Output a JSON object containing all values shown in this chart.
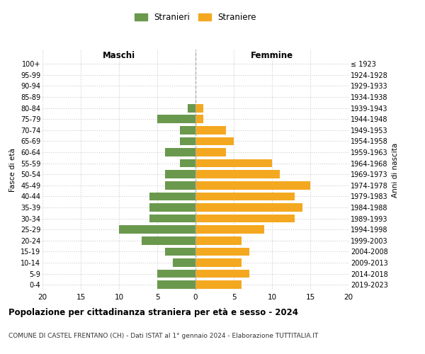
{
  "age_groups": [
    "0-4",
    "5-9",
    "10-14",
    "15-19",
    "20-24",
    "25-29",
    "30-34",
    "35-39",
    "40-44",
    "45-49",
    "50-54",
    "55-59",
    "60-64",
    "65-69",
    "70-74",
    "75-79",
    "80-84",
    "85-89",
    "90-94",
    "95-99",
    "100+"
  ],
  "birth_years": [
    "2019-2023",
    "2014-2018",
    "2009-2013",
    "2004-2008",
    "1999-2003",
    "1994-1998",
    "1989-1993",
    "1984-1988",
    "1979-1983",
    "1974-1978",
    "1969-1973",
    "1964-1968",
    "1959-1963",
    "1954-1958",
    "1949-1953",
    "1944-1948",
    "1939-1943",
    "1934-1938",
    "1929-1933",
    "1924-1928",
    "≤ 1923"
  ],
  "males": [
    5,
    5,
    3,
    4,
    7,
    10,
    6,
    6,
    6,
    4,
    4,
    2,
    4,
    2,
    2,
    5,
    1,
    0,
    0,
    0,
    0
  ],
  "females": [
    6,
    7,
    6,
    7,
    6,
    9,
    13,
    14,
    13,
    15,
    11,
    10,
    4,
    5,
    4,
    1,
    1,
    0,
    0,
    0,
    0
  ],
  "male_color": "#6a994e",
  "female_color": "#f4a820",
  "grid_color": "#cccccc",
  "title": "Popolazione per cittadinanza straniera per età e sesso - 2024",
  "subtitle": "COMUNE DI CASTEL FRENTANO (CH) - Dati ISTAT al 1° gennaio 2024 - Elaborazione TUTTITALIA.IT",
  "xlabel_left": "Maschi",
  "xlabel_right": "Femmine",
  "ylabel_left": "Fasce di età",
  "ylabel_right": "Anni di nascita",
  "legend_male": "Stranieri",
  "legend_female": "Straniere",
  "xlim": 20,
  "bar_height": 0.75
}
